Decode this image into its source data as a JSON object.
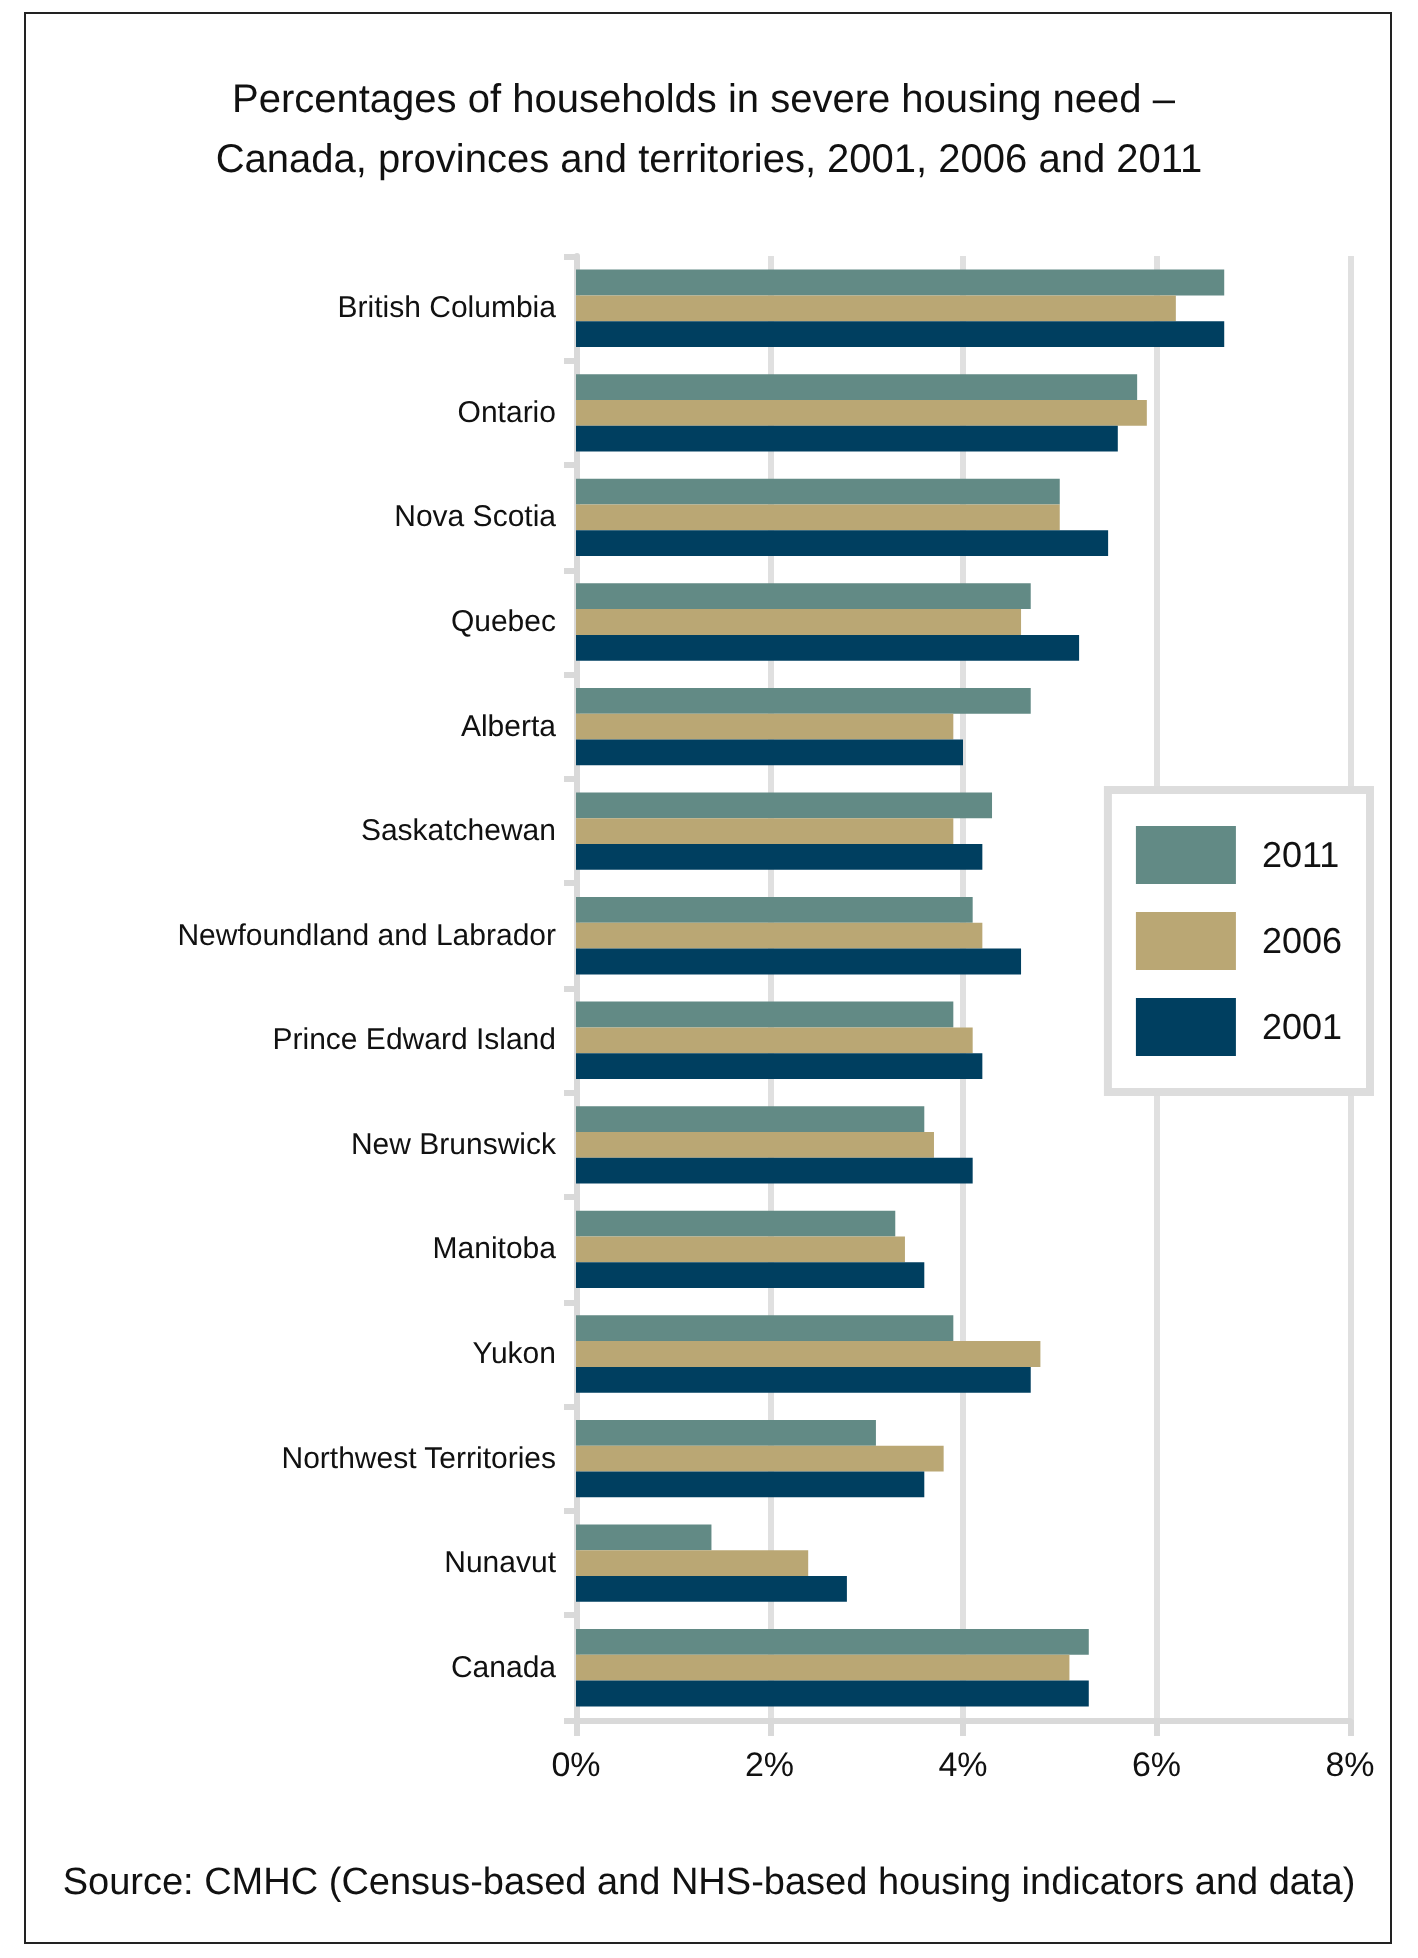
{
  "chart_data": {
    "type": "bar",
    "orientation": "horizontal",
    "title": "Percentages of households in severe housing need – Canada, provinces and territories, 2001, 2006 and 2011",
    "categories": [
      "British Columbia",
      "Ontario",
      "Nova Scotia",
      "Quebec",
      "Alberta",
      "Saskatchewan",
      "Newfoundland and Labrador",
      "Prince Edward Island",
      "New Brunswick",
      "Manitoba",
      "Yukon",
      "Northwest Territories",
      "Nunavut",
      "Canada"
    ],
    "series": [
      {
        "name": "2011",
        "color": "#628a85",
        "values": [
          6.7,
          5.8,
          5.0,
          4.7,
          4.7,
          4.3,
          4.1,
          3.9,
          3.6,
          3.3,
          3.9,
          3.1,
          1.4,
          5.3
        ]
      },
      {
        "name": "2006",
        "color": "#baa774",
        "values": [
          6.2,
          5.9,
          5.0,
          4.6,
          3.9,
          3.9,
          4.2,
          4.1,
          3.7,
          3.4,
          4.8,
          3.8,
          2.4,
          5.1
        ]
      },
      {
        "name": "2001",
        "color": "#003f60",
        "values": [
          6.7,
          5.6,
          5.5,
          5.2,
          4.0,
          4.2,
          4.6,
          4.2,
          4.1,
          3.6,
          4.7,
          3.6,
          2.8,
          5.3
        ]
      }
    ],
    "xlim": [
      0,
      8
    ],
    "xticks": [
      {
        "value": 0,
        "label": "0%"
      },
      {
        "value": 2,
        "label": "2%"
      },
      {
        "value": 4,
        "label": "4%"
      },
      {
        "value": 6,
        "label": "6%"
      },
      {
        "value": 8,
        "label": "8%"
      }
    ],
    "grid": "x",
    "legend": "right",
    "annotations": [
      "Source: CMHC (Census-based and NHS-based housing indicators and data)"
    ]
  }
}
